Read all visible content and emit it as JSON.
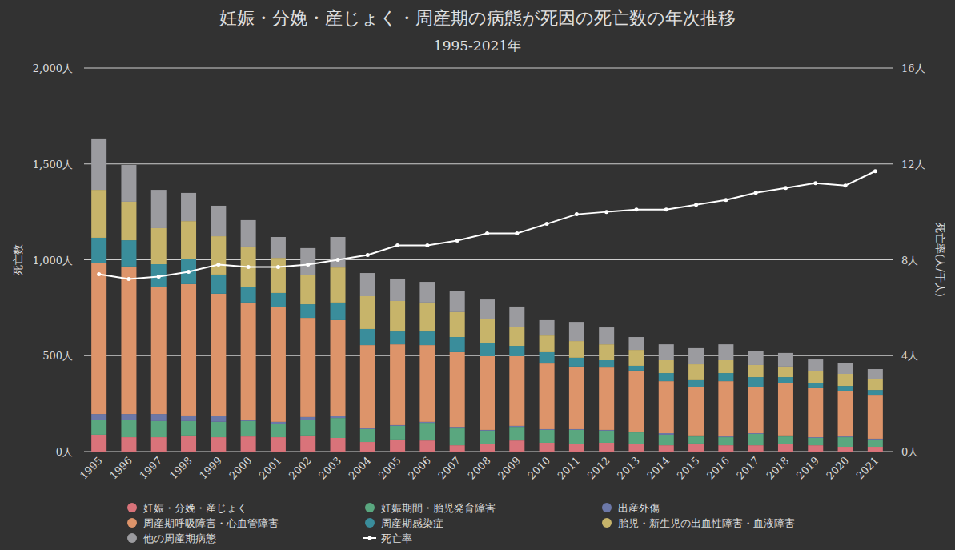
{
  "chart_data": {
    "type": "bar",
    "title": "妊娠・分娩・産じょく・周産期の病態が死因の死亡数の年次推移",
    "subtitle": "1995-2021年",
    "y_label": "死亡数",
    "y2_label": "死亡率(人/千人)",
    "stacked": true,
    "grid": true,
    "legend": "bottom",
    "categories": [
      "1995",
      "1996",
      "1997",
      "1998",
      "1999",
      "2000",
      "2001",
      "2002",
      "2003",
      "2004",
      "2005",
      "2006",
      "2007",
      "2008",
      "2009",
      "2010",
      "2011",
      "2012",
      "2013",
      "2014",
      "2015",
      "2016",
      "2017",
      "2018",
      "2019",
      "2020",
      "2021"
    ],
    "ylim": [
      0,
      2000
    ],
    "yticks": [
      {
        "value": 0,
        "label": "0人"
      },
      {
        "value": 500,
        "label": "500人"
      },
      {
        "value": 1000,
        "label": "1,000人"
      },
      {
        "value": 1500,
        "label": "1,500人"
      },
      {
        "value": 2000,
        "label": "2,000人"
      }
    ],
    "y2lim": [
      0,
      16
    ],
    "y2ticks": [
      {
        "value": 0,
        "label": "0人"
      },
      {
        "value": 4,
        "label": "4人"
      },
      {
        "value": 8,
        "label": "8人"
      },
      {
        "value": 12,
        "label": "12人"
      },
      {
        "value": 16,
        "label": "16人"
      }
    ],
    "series": [
      {
        "name": "妊娠・分娩・産じょく",
        "type": "bar",
        "color": "#d9737a",
        "values": [
          88,
          75,
          75,
          84,
          75,
          79,
          75,
          84,
          71,
          50,
          63,
          58,
          33,
          38,
          58,
          46,
          38,
          46,
          38,
          33,
          42,
          33,
          33,
          38,
          33,
          25,
          25
        ]
      },
      {
        "name": "妊娠期間・胎児発育障害",
        "type": "bar",
        "color": "#5aa77f",
        "values": [
          79,
          92,
          84,
          75,
          80,
          80,
          71,
          79,
          104,
          67,
          71,
          92,
          88,
          71,
          71,
          67,
          75,
          63,
          62,
          55,
          37,
          42,
          59,
          41,
          38,
          50,
          38
        ]
      },
      {
        "name": "出産外傷",
        "type": "bar",
        "color": "#6c78a8",
        "values": [
          29,
          29,
          37,
          29,
          29,
          8,
          9,
          17,
          9,
          4,
          4,
          5,
          8,
          4,
          5,
          4,
          4,
          4,
          4,
          8,
          5,
          4,
          4,
          5,
          4,
          4,
          4
        ]
      },
      {
        "name": "周産期呼吸障害・心血管障害",
        "type": "bar",
        "color": "#dd946a",
        "values": [
          789,
          769,
          664,
          685,
          639,
          610,
          597,
          517,
          501,
          434,
          421,
          400,
          389,
          384,
          363,
          342,
          326,
          325,
          318,
          271,
          254,
          288,
          242,
          275,
          255,
          238,
          225
        ]
      },
      {
        "name": "周産期感染症",
        "type": "bar",
        "color": "#3a8d9b",
        "values": [
          130,
          137,
          117,
          129,
          100,
          83,
          75,
          71,
          92,
          84,
          67,
          71,
          79,
          67,
          54,
          59,
          46,
          38,
          25,
          42,
          34,
          42,
          50,
          29,
          29,
          25,
          29
        ]
      },
      {
        "name": "胎児・新生児の出血性障害・血液障害",
        "type": "bar",
        "color": "#c7b46a",
        "values": [
          250,
          201,
          188,
          200,
          200,
          209,
          183,
          151,
          183,
          171,
          159,
          151,
          130,
          125,
          100,
          87,
          87,
          83,
          83,
          67,
          83,
          67,
          63,
          55,
          59,
          63,
          55
        ]
      },
      {
        "name": "他の周産期病態",
        "type": "bar",
        "color": "#9b9b9f",
        "values": [
          268,
          192,
          200,
          147,
          159,
          138,
          109,
          142,
          159,
          121,
          117,
          108,
          112,
          104,
          105,
          80,
          100,
          88,
          67,
          83,
          84,
          83,
          71,
          71,
          62,
          58,
          54
        ]
      },
      {
        "name": "死亡率",
        "type": "line",
        "axis": "y2",
        "color": "#ffffff",
        "marker": "circle",
        "values": [
          7.4,
          7.2,
          7.3,
          7.5,
          7.8,
          7.7,
          7.7,
          7.8,
          8.0,
          8.2,
          8.6,
          8.6,
          8.8,
          9.1,
          9.1,
          9.5,
          9.9,
          10.0,
          10.1,
          10.1,
          10.3,
          10.5,
          10.8,
          11.0,
          11.2,
          11.1,
          11.7
        ]
      }
    ]
  }
}
